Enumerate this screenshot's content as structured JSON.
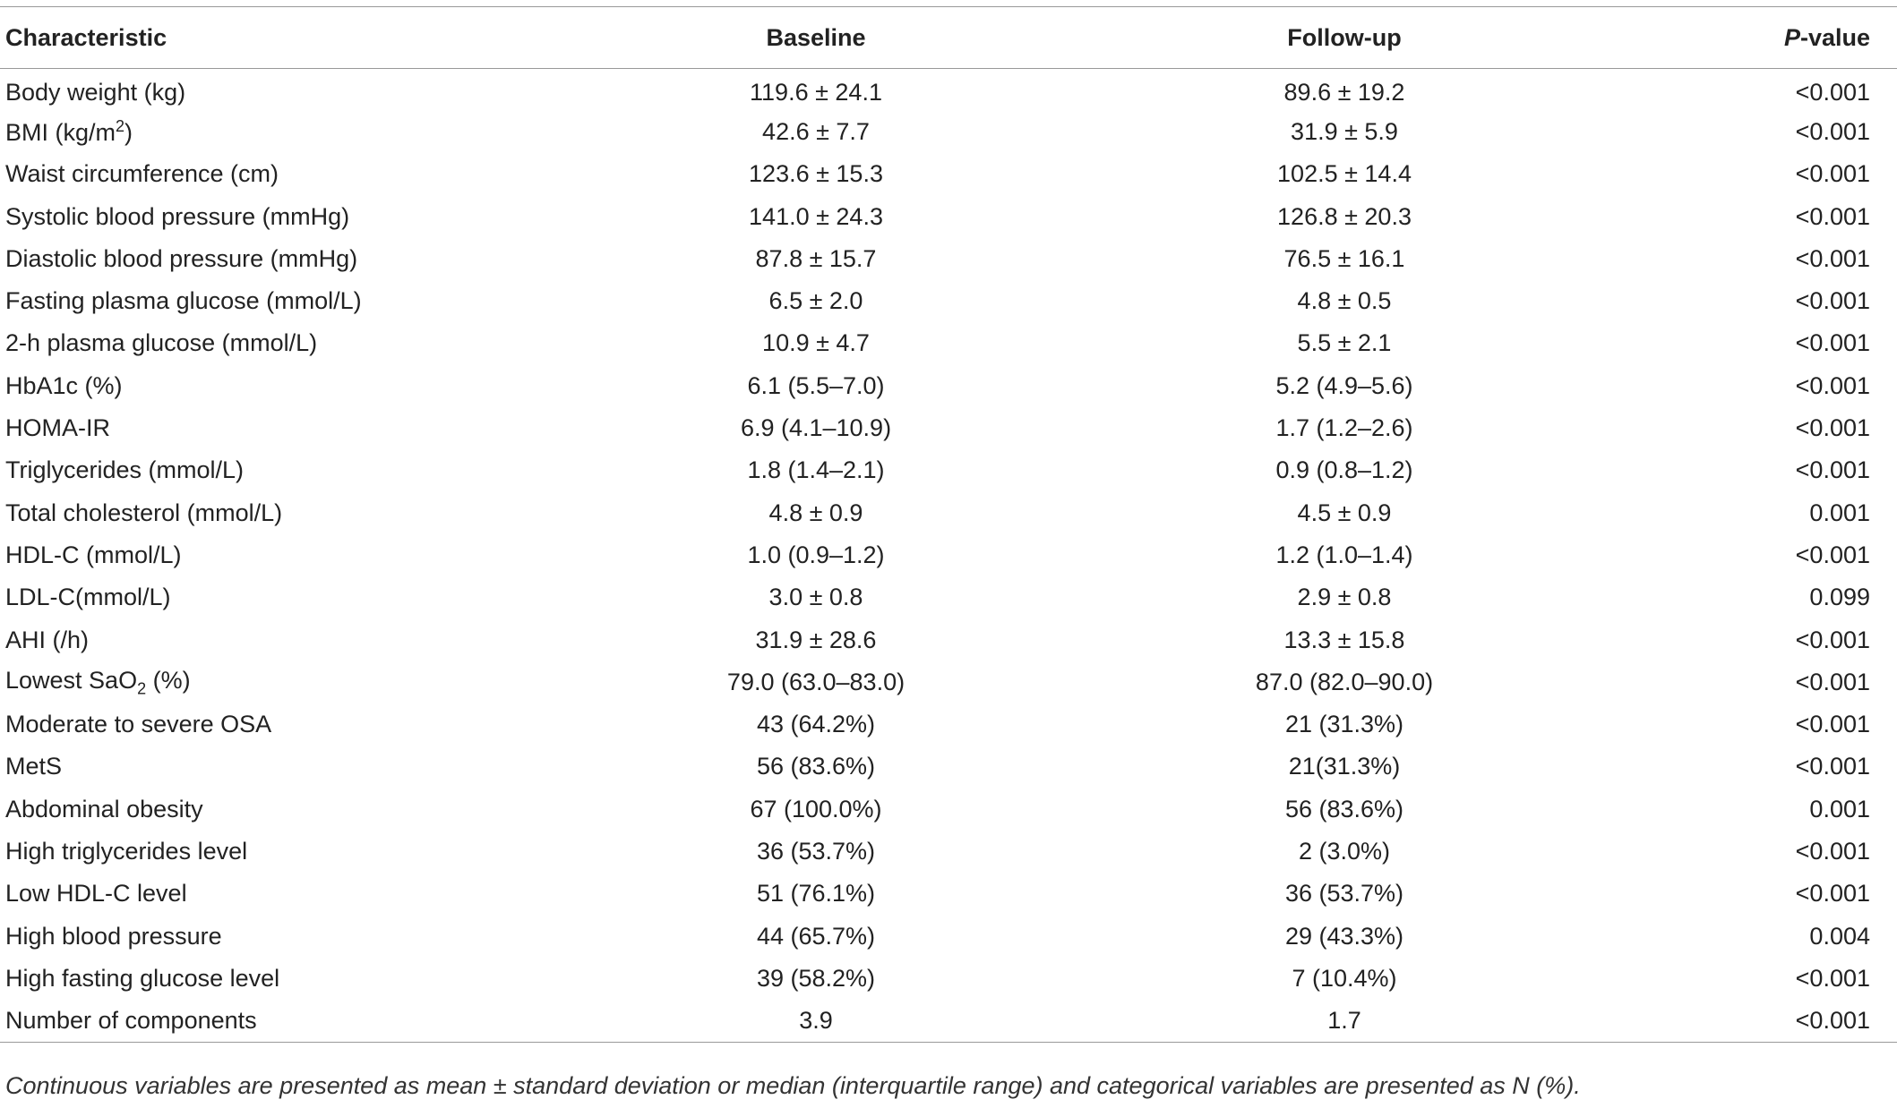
{
  "table": {
    "header": [
      "Characteristic",
      "Baseline",
      "Follow-up",
      {
        "italic": "P",
        "text": "-value"
      }
    ],
    "rows": [
      [
        "Body weight (kg)",
        "119.6 ± 24.1",
        "89.6 ± 19.2",
        "<0.001"
      ],
      [
        {
          "pre": "BMI (kg/m",
          "sup": "2",
          "post": ")"
        },
        "42.6 ± 7.7",
        "31.9 ± 5.9",
        "<0.001"
      ],
      [
        "Waist circumference (cm)",
        "123.6 ± 15.3",
        "102.5 ± 14.4",
        "<0.001"
      ],
      [
        "Systolic blood pressure (mmHg)",
        "141.0 ± 24.3",
        "126.8 ± 20.3",
        "<0.001"
      ],
      [
        "Diastolic blood pressure (mmHg)",
        "87.8 ± 15.7",
        "76.5 ± 16.1",
        "<0.001"
      ],
      [
        "Fasting plasma glucose (mmol/L)",
        "6.5 ± 2.0",
        "4.8 ± 0.5",
        "<0.001"
      ],
      [
        "2-h plasma glucose (mmol/L)",
        "10.9 ± 4.7",
        "5.5 ± 2.1",
        "<0.001"
      ],
      [
        "HbA1c (%)",
        "6.1 (5.5–7.0)",
        "5.2 (4.9–5.6)",
        "<0.001"
      ],
      [
        "HOMA-IR",
        "6.9 (4.1–10.9)",
        "1.7 (1.2–2.6)",
        "<0.001"
      ],
      [
        "Triglycerides (mmol/L)",
        "1.8 (1.4–2.1)",
        "0.9 (0.8–1.2)",
        "<0.001"
      ],
      [
        "Total cholesterol (mmol/L)",
        "4.8 ± 0.9",
        "4.5 ± 0.9",
        "0.001"
      ],
      [
        "HDL-C (mmol/L)",
        "1.0 (0.9–1.2)",
        "1.2 (1.0–1.4)",
        "<0.001"
      ],
      [
        "LDL-C(mmol/L)",
        "3.0 ± 0.8",
        "2.9 ± 0.8",
        "0.099"
      ],
      [
        "AHI (/h)",
        "31.9 ± 28.6",
        "13.3 ± 15.8",
        "<0.001"
      ],
      [
        {
          "pre": "Lowest SaO",
          "sub": "2",
          "post": " (%)"
        },
        "79.0 (63.0–83.0)",
        "87.0 (82.0–90.0)",
        "<0.001"
      ],
      [
        "Moderate to severe OSA",
        "43 (64.2%)",
        "21 (31.3%)",
        "<0.001"
      ],
      [
        "MetS",
        "56 (83.6%)",
        "21(31.3%)",
        "<0.001"
      ],
      [
        "Abdominal obesity",
        "67 (100.0%)",
        "56 (83.6%)",
        "0.001"
      ],
      [
        "High triglycerides level",
        "36 (53.7%)",
        "2 (3.0%)",
        "<0.001"
      ],
      [
        "Low HDL-C level",
        "51 (76.1%)",
        "36 (53.7%)",
        "<0.001"
      ],
      [
        "High blood pressure",
        "44 (65.7%)",
        "29 (43.3%)",
        "0.004"
      ],
      [
        "High fasting glucose level",
        "39 (58.2%)",
        "7 (10.4%)",
        "<0.001"
      ],
      [
        "Number of components",
        "3.9",
        "1.7",
        "<0.001"
      ]
    ],
    "footnote": "Continuous variables are presented as mean ± standard deviation or median (interquartile range) and categorical variables are presented as N (%)."
  }
}
